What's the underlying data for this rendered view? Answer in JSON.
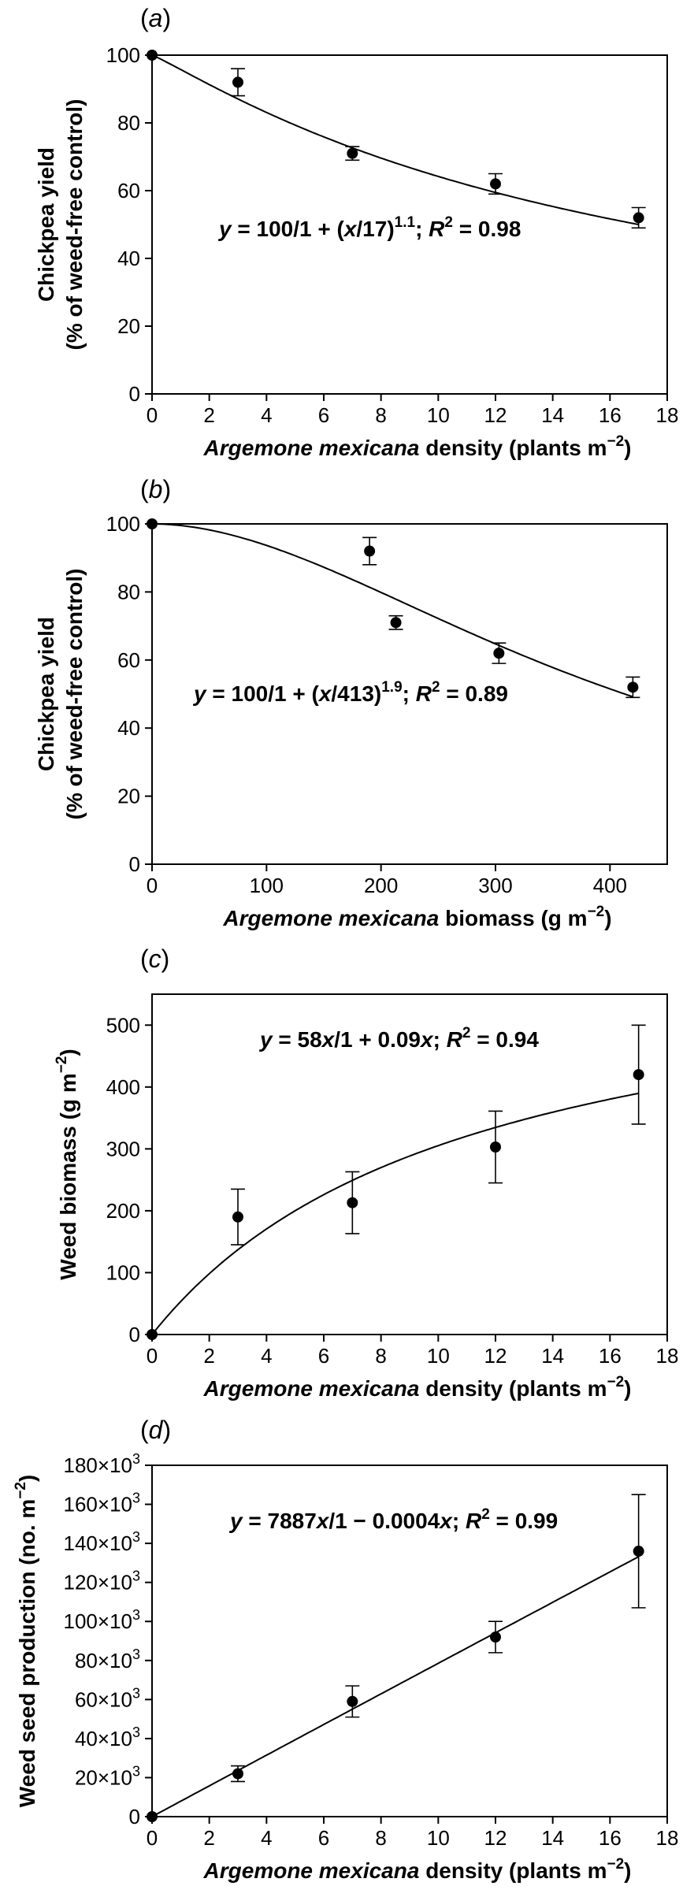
{
  "chart_data": [
    {
      "type": "scatter",
      "panel": "(a)",
      "xlabel": "Argemone mexicana density (plants m−2)",
      "ylabel": [
        "Chickpea yield",
        "(% of weed-free control)"
      ],
      "xlim": [
        0,
        18
      ],
      "ylim": [
        0,
        100
      ],
      "xticks": [
        0,
        2,
        4,
        6,
        8,
        10,
        12,
        14,
        16,
        18
      ],
      "yticks": [
        0,
        20,
        40,
        60,
        80,
        100
      ],
      "points": [
        {
          "x": 0,
          "y": 100
        },
        {
          "x": 3,
          "y": 92,
          "err": 4
        },
        {
          "x": 7,
          "y": 71,
          "err": 2
        },
        {
          "x": 12,
          "y": 62,
          "err": 3
        },
        {
          "x": 17,
          "y": 52,
          "err": 3
        }
      ],
      "fit": "100/1 + (x/17)^1.1",
      "equation": "y = 100/1 + (x/17)1.1; R2 = 0.98"
    },
    {
      "type": "scatter",
      "panel": "(b)",
      "xlabel": "Argemone mexicana biomass (g m−2)",
      "ylabel": [
        "Chickpea yield",
        "(% of weed-free control)"
      ],
      "xlim": [
        0,
        450
      ],
      "ylim": [
        0,
        100
      ],
      "xticks": [
        0,
        100,
        200,
        300,
        400
      ],
      "yticks": [
        0,
        20,
        40,
        60,
        80,
        100
      ],
      "points": [
        {
          "x": 0,
          "y": 100
        },
        {
          "x": 190,
          "y": 92,
          "err": 4
        },
        {
          "x": 213,
          "y": 71,
          "err": 2
        },
        {
          "x": 303,
          "y": 62,
          "err": 3
        },
        {
          "x": 420,
          "y": 52,
          "err": 3
        }
      ],
      "fit": "100/1 + (x/413)^1.9",
      "equation": "y = 100/1 + (x/413)1.9; R2 = 0.89"
    },
    {
      "type": "scatter",
      "panel": "(c)",
      "xlabel": "Argemone mexicana density (plants m−2)",
      "ylabel": [
        "Weed biomass (g m−2)"
      ],
      "xlim": [
        0,
        18
      ],
      "ylim": [
        0,
        550
      ],
      "xticks": [
        0,
        2,
        4,
        6,
        8,
        10,
        12,
        14,
        16,
        18
      ],
      "yticks": [
        0,
        100,
        200,
        300,
        400,
        500
      ],
      "points": [
        {
          "x": 0,
          "y": 0
        },
        {
          "x": 3,
          "y": 190,
          "err": 45
        },
        {
          "x": 7,
          "y": 213,
          "err": 50
        },
        {
          "x": 12,
          "y": 303,
          "err": 58
        },
        {
          "x": 17,
          "y": 420,
          "err": 80
        }
      ],
      "fit": "58x/1 + 0.09x",
      "equation": "y = 58x/1 + 0.09x; R2 = 0.94"
    },
    {
      "type": "scatter",
      "panel": "(d)",
      "xlabel": "Argemone mexicana density (plants m−2)",
      "ylabel": [
        "Weed seed production (no. m−2)"
      ],
      "xlim": [
        0,
        18
      ],
      "ylim": [
        0,
        180000
      ],
      "xticks": [
        0,
        2,
        4,
        6,
        8,
        10,
        12,
        14,
        16,
        18
      ],
      "yticks": [
        0,
        20000,
        40000,
        60000,
        80000,
        100000,
        120000,
        140000,
        160000,
        180000
      ],
      "points": [
        {
          "x": 0,
          "y": 0
        },
        {
          "x": 3,
          "y": 22000,
          "err": 4000
        },
        {
          "x": 7,
          "y": 59000,
          "err": 8000
        },
        {
          "x": 12,
          "y": 92000,
          "err": 8000
        },
        {
          "x": 17,
          "y": 136000,
          "err": 29000
        }
      ],
      "fit": "7887x/1 − 0.0004x",
      "equation": "y = 7887x/1 − 0.0004x; R2 = 0.99"
    }
  ]
}
